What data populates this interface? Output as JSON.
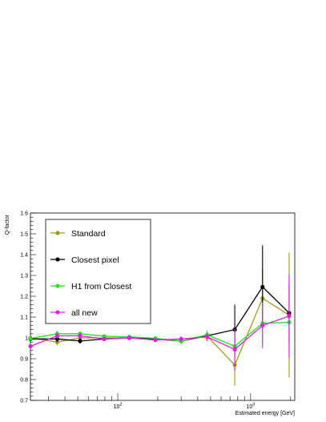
{
  "chart_data": {
    "type": "line",
    "xlabel": "Estimated energy [GeV]",
    "ylabel": "Q-factor",
    "xscale": "log",
    "xlim": [
      22,
      2150
    ],
    "ylim": [
      0.7,
      1.6
    ],
    "grid": false,
    "legend_position": "top-left",
    "x_tick_labels": [
      {
        "value": 100,
        "base": "10",
        "exp": "2"
      },
      {
        "value": 1000,
        "base": "10",
        "exp": "3"
      }
    ],
    "y_tick_labels": [
      "0.7",
      "0.8",
      "0.9",
      "1",
      "1.1",
      "1.2",
      "1.3",
      "1.4",
      "1.5",
      "1.6"
    ],
    "x": [
      22,
      35,
      52,
      79,
      122,
      192,
      300,
      470,
      760,
      1230,
      1950
    ],
    "series": [
      {
        "name": "Standard",
        "color": "#9c9a1f",
        "values": [
          1.0,
          0.98,
          1.0,
          1.0,
          1.0,
          0.995,
          0.985,
          1.01,
          0.87,
          1.19,
          1.11
        ],
        "errors": [
          0.008,
          0.015,
          0.012,
          0.008,
          0.008,
          0.008,
          0.012,
          0.02,
          0.1,
          0.14,
          0.3
        ]
      },
      {
        "name": "Closest pixel",
        "color": "#000000",
        "values": [
          0.995,
          0.995,
          0.985,
          0.995,
          1.0,
          0.995,
          0.985,
          1.01,
          1.04,
          1.245,
          1.12
        ],
        "errors": [
          0.008,
          0.015,
          0.012,
          0.008,
          0.008,
          0.008,
          0.012,
          0.02,
          0.12,
          0.2,
          0.14
        ]
      },
      {
        "name": "H1 from Closest",
        "color": "#22e022",
        "values": [
          0.997,
          1.02,
          1.02,
          1.008,
          1.005,
          0.998,
          0.985,
          1.015,
          0.96,
          1.07,
          1.075
        ],
        "errors": [
          0.008,
          0.015,
          0.012,
          0.008,
          0.008,
          0.008,
          0.012,
          0.02,
          0.08,
          0.1,
          0.15
        ]
      },
      {
        "name": "all new",
        "color": "#e020e0",
        "values": [
          0.96,
          1.01,
          1.01,
          0.995,
          1.0,
          0.99,
          0.995,
          1.005,
          0.945,
          1.06,
          1.105
        ],
        "errors": [
          0.008,
          0.015,
          0.012,
          0.008,
          0.008,
          0.008,
          0.012,
          0.02,
          0.1,
          0.11,
          0.2
        ]
      }
    ]
  }
}
